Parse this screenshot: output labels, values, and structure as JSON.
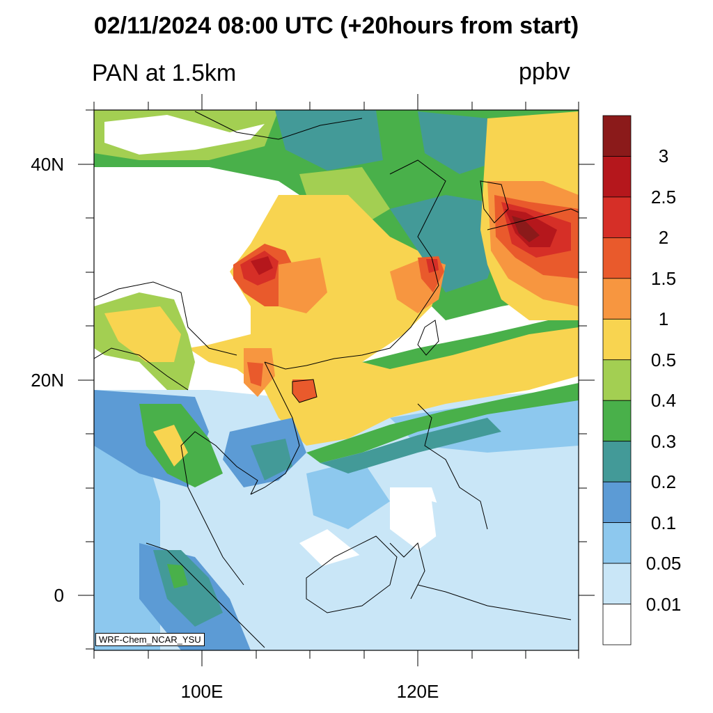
{
  "title": "02/11/2024 08:00 UTC (+20hours from start)",
  "subtitle": "PAN at 1.5km",
  "units": "ppbv",
  "credit": "WRF-Chem_NCAR_YSU",
  "axes": {
    "lat_labels": [
      "40N",
      "20N",
      "0"
    ],
    "lon_labels": [
      "100E",
      "120E"
    ]
  },
  "colorbar": {
    "labels": [
      "3",
      "2.5",
      "2",
      "1.5",
      "1",
      "0.5",
      "0.4",
      "0.3",
      "0.2",
      "0.1",
      "0.05",
      "0.01"
    ],
    "colors": [
      "#8b1a1a",
      "#b5171c",
      "#d62f27",
      "#e95a2c",
      "#f79640",
      "#f8d450",
      "#a3cf52",
      "#49b04a",
      "#439a98",
      "#5c9bd5",
      "#8dc8ee",
      "#c9e6f7",
      "#ffffff"
    ]
  }
}
